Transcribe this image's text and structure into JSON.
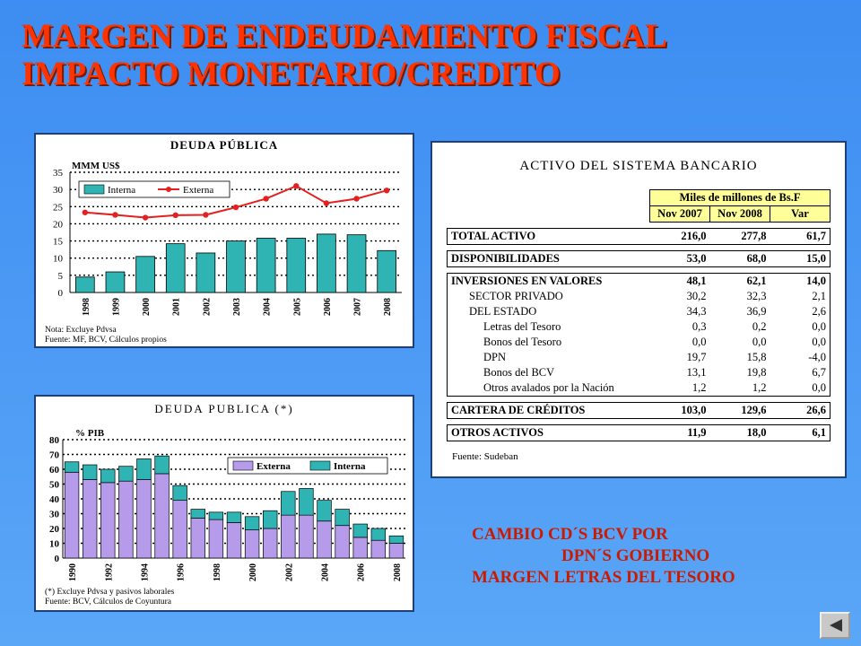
{
  "title": {
    "line1": "MARGEN DE ENDEUDAMIENTO FISCAL",
    "line2": "IMPACTO MONETARIO/CREDITO"
  },
  "note": {
    "line1": "CAMBIO CD´S BCV POR",
    "line2": "DPN´S GOBIERNO",
    "line3": "MARGEN LETRAS DEL TESORO"
  },
  "chart_data": [
    {
      "type": "bar",
      "title": "DEUDA PÚBLICA",
      "ylabel": "MMM US$",
      "categories": [
        "1998",
        "1999",
        "2000",
        "2001",
        "2002",
        "2003",
        "2004",
        "2005",
        "2006",
        "2007",
        "2008"
      ],
      "series": [
        {
          "name": "Interna",
          "kind": "bar",
          "values": [
            4.5,
            6,
            10.5,
            14.2,
            11.5,
            15,
            15.8,
            15.8,
            17,
            16.8,
            12.2
          ]
        },
        {
          "name": "Externa",
          "kind": "line",
          "values": [
            23.3,
            22.6,
            21.8,
            22.5,
            22.6,
            24.8,
            27.3,
            31.0,
            26.0,
            27.3,
            29.7
          ]
        }
      ],
      "ylim": [
        0,
        35
      ],
      "yticks": [
        0,
        5,
        10,
        15,
        20,
        25,
        30,
        35
      ],
      "grid": true,
      "legend": "top",
      "footnote1": "Nota: Excluye Pdvsa",
      "footnote2": "Fuente: MF, BCV, Cálculos propios",
      "colors": {
        "bar": "#2fb3b3",
        "line": "#e52020",
        "grid": "#000000"
      }
    },
    {
      "type": "bar",
      "stacked": true,
      "title": "DEUDA PUBLICA (*)",
      "ylabel": "% PIB",
      "categories": [
        "1990",
        "1991",
        "1992",
        "1993",
        "1994",
        "1995",
        "1996",
        "1997",
        "1998",
        "1999",
        "2000",
        "2001",
        "2002",
        "2003",
        "2004",
        "2005",
        "2006",
        "2007",
        "2008"
      ],
      "category_labels": [
        "1990",
        "",
        "1992",
        "",
        "1994",
        "",
        "1996",
        "",
        "1998",
        "",
        "2000",
        "",
        "2002",
        "",
        "2004",
        "",
        "2006",
        "",
        "2008"
      ],
      "series": [
        {
          "name": "Externa",
          "values": [
            58,
            53,
            51,
            52,
            53,
            57,
            39,
            27,
            26,
            24,
            19,
            20,
            29,
            29,
            25,
            22,
            14,
            12,
            10
          ]
        },
        {
          "name": "Interna",
          "values": [
            7,
            10,
            9,
            10,
            14,
            12,
            10,
            6,
            5,
            7,
            9,
            12,
            16,
            18,
            14,
            11,
            9,
            8,
            5
          ]
        }
      ],
      "ylim": [
        0,
        80
      ],
      "yticks": [
        0,
        10,
        20,
        30,
        40,
        50,
        60,
        70,
        80
      ],
      "grid": true,
      "legend": "top-right",
      "footnote1": "(*) Excluye Pdvsa y pasivos laborales",
      "footnote2": "Fuente: BCV, Cálculos de Coyuntura",
      "colors": {
        "externa": "#b69bea",
        "interna": "#2fb3b3"
      }
    },
    {
      "type": "table",
      "title": "ACTIVO DEL SISTEMA BANCARIO",
      "header_group": "Miles de millones de Bs.F",
      "columns": [
        "Nov 2007",
        "Nov 2008",
        "Var"
      ],
      "source": "Fuente: Sudeban",
      "rows": [
        {
          "label": "TOTAL ACTIVO",
          "values": [
            "216,0",
            "277,8",
            "61,7"
          ],
          "style": "main"
        },
        {
          "label": "DISPONIBILIDADES",
          "values": [
            "53,0",
            "68,0",
            "15,0"
          ],
          "style": "main"
        },
        {
          "label": "INVERSIONES EN VALORES",
          "values": [
            "48,1",
            "62,1",
            "14,0"
          ],
          "style": "main-top"
        },
        {
          "label": "SECTOR PRIVADO",
          "values": [
            "30,2",
            "32,3",
            "2,1"
          ],
          "style": "indent1"
        },
        {
          "label": "DEL ESTADO",
          "values": [
            "34,3",
            "36,9",
            "2,6"
          ],
          "style": "indent1"
        },
        {
          "label": "Letras del Tesoro",
          "values": [
            "0,3",
            "0,2",
            "0,0"
          ],
          "style": "indent2"
        },
        {
          "label": "Bonos del Tesoro",
          "values": [
            "0,0",
            "0,0",
            "0,0"
          ],
          "style": "indent2"
        },
        {
          "label": "DPN",
          "values": [
            "19,7",
            "15,8",
            "-4,0"
          ],
          "style": "indent2"
        },
        {
          "label": "Bonos del BCV",
          "values": [
            "13,1",
            "19,8",
            "6,7"
          ],
          "style": "indent2"
        },
        {
          "label": "Otros avalados por la Nación",
          "values": [
            "1,2",
            "1,2",
            "0,0"
          ],
          "style": "indent2-end"
        },
        {
          "label": "CARTERA DE CRÉDITOS",
          "values": [
            "103,0",
            "129,6",
            "26,6"
          ],
          "style": "main"
        },
        {
          "label": "OTROS ACTIVOS",
          "values": [
            "11,9",
            "18,0",
            "6,1"
          ],
          "style": "main"
        }
      ]
    }
  ]
}
